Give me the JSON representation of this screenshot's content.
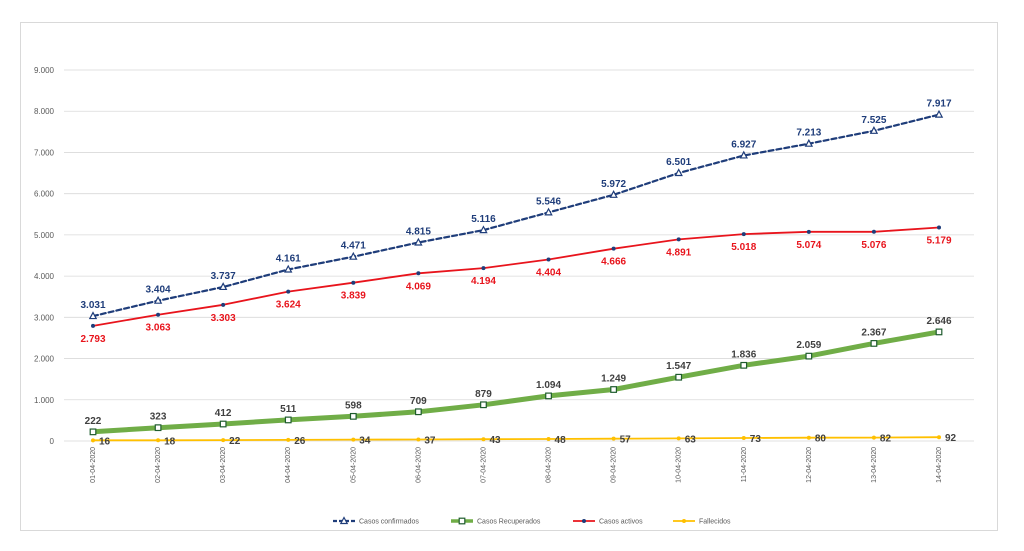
{
  "chart_data": {
    "type": "line",
    "categories": [
      "01-04-2020",
      "02-04-2020",
      "03-04-2020",
      "04-04-2020",
      "05-04-2020",
      "06-04-2020",
      "07-04-2020",
      "08-04-2020",
      "09-04-2020",
      "10-04-2020",
      "11-04-2020",
      "12-04-2020",
      "13-04-2020",
      "14-04-2020"
    ],
    "ylim": [
      0,
      9000
    ],
    "yticks": [
      "0",
      "1.000",
      "2.000",
      "3.000",
      "4.000",
      "5.000",
      "6.000",
      "7.000",
      "8.000",
      "9.000"
    ],
    "grid": true,
    "legend_position": "bottom",
    "series": [
      {
        "name": "Casos confirmados",
        "color": "#1f3d7a",
        "style": "dashed",
        "marker": "triangle",
        "label_position": "above",
        "values": [
          3031,
          3404,
          3737,
          4161,
          4471,
          4815,
          5116,
          5546,
          5972,
          6501,
          6927,
          7213,
          7525,
          7917
        ],
        "labels": [
          "3.031",
          "3.404",
          "3.737",
          "4.161",
          "4.471",
          "4.815",
          "5.116",
          "5.546",
          "5.972",
          "6.501",
          "6.927",
          "7.213",
          "7.525",
          "7.917"
        ]
      },
      {
        "name": "Casos Recuperados",
        "color": "#70ad47",
        "style": "thick",
        "marker": "square",
        "label_position": "above",
        "values": [
          222,
          323,
          412,
          511,
          598,
          709,
          879,
          1094,
          1249,
          1547,
          1836,
          2059,
          2367,
          2646
        ],
        "labels": [
          "222",
          "323",
          "412",
          "511",
          "598",
          "709",
          "879",
          "1.094",
          "1.249",
          "1.547",
          "1.836",
          "2.059",
          "2.367",
          "2.646"
        ]
      },
      {
        "name": "Casos activos",
        "color": "#e8141c",
        "style": "solid",
        "marker": "dot",
        "label_position": "below",
        "values": [
          2793,
          3063,
          3303,
          3624,
          3839,
          4069,
          4194,
          4404,
          4666,
          4891,
          5018,
          5074,
          5076,
          5179
        ],
        "labels": [
          "2.793",
          "3.063",
          "3.303",
          "3.624",
          "3.839",
          "4.069",
          "4.194",
          "4.404",
          "4.666",
          "4.891",
          "5.018",
          "5.074",
          "5.076",
          "5.179"
        ]
      },
      {
        "name": "Fallecidos",
        "color": "#ffc000",
        "style": "solid",
        "marker": "dot",
        "label_position": "right",
        "values": [
          16,
          18,
          22,
          26,
          34,
          37,
          43,
          48,
          57,
          63,
          73,
          80,
          82,
          92
        ],
        "labels": [
          "16",
          "18",
          "22",
          "26",
          "34",
          "37",
          "43",
          "48",
          "57",
          "63",
          "73",
          "80",
          "82",
          "92"
        ]
      }
    ]
  }
}
